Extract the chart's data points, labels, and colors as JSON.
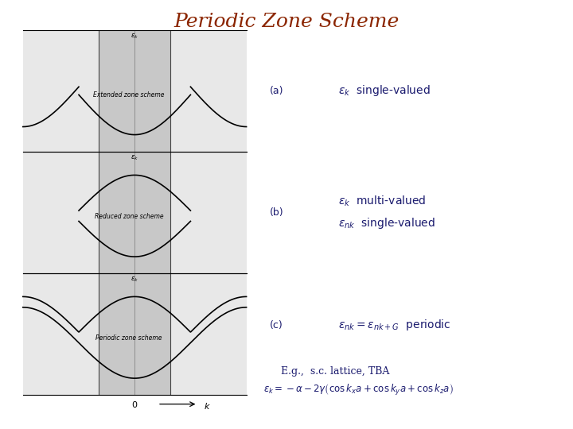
{
  "title": "Periodic Zone Scheme",
  "title_color": "#8B2500",
  "title_fontsize": 18,
  "background_color": "#ffffff",
  "annotation_color": "#1a1a6e",
  "label_a": "(a)",
  "label_b": "(b)",
  "label_c": "(c)",
  "text_a": "$\\varepsilon_k$  single-valued",
  "text_b1": "$\\varepsilon_k$  multi-valued",
  "text_b2": "$\\varepsilon_{nk}$  single-valued",
  "text_c": "$\\varepsilon_{nk} = \\varepsilon_{nk+G}$  periodic",
  "text_eg": "E.g.,  s.c. lattice, TBA",
  "text_formula": "$\\varepsilon_k = -\\alpha - 2\\gamma\\left(\\cos k_x a + \\cos k_y a + \\cos k_z a\\right)$",
  "panel_bg_center": "#c8c8c8",
  "panel_bg_outer": "#e8e8e8",
  "panel_bg_white": "#f5f5f5",
  "curve_color": "#000000",
  "border_color": "#444444",
  "label_extended": "Extended zone scheme",
  "label_reduced": "Reduced zone scheme",
  "label_periodic": "Periodic zone scheme",
  "eps_k_label": "$\\varepsilon_k$",
  "eps_k_label2": "$\\varepsilon_k$",
  "eps_k_label3": "$\\varepsilon_k$"
}
